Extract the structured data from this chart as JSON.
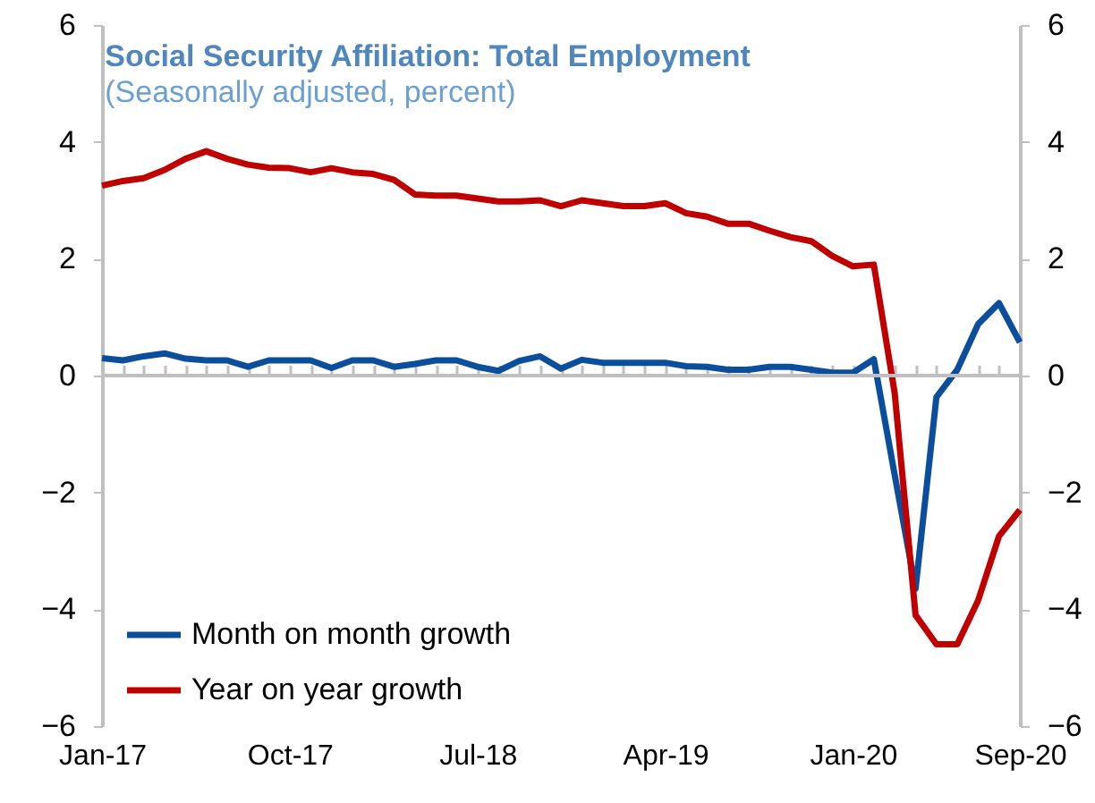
{
  "chart_data": {
    "type": "line",
    "title": "Social Security Affiliation: Total Employment",
    "subtitle": "(Seasonally adjusted, percent)",
    "categories": [
      "Jan-17",
      null,
      null,
      null,
      null,
      null,
      null,
      null,
      null,
      "Oct-17",
      null,
      null,
      null,
      null,
      null,
      null,
      null,
      null,
      "Jul-18",
      null,
      null,
      null,
      null,
      null,
      null,
      null,
      null,
      "Apr-19",
      null,
      null,
      null,
      null,
      null,
      null,
      null,
      null,
      "Jan-20",
      null,
      null,
      null,
      null,
      null,
      null,
      null,
      "Sep-20"
    ],
    "series": [
      {
        "name": "Month on month growth",
        "color": "#0b4f9c",
        "values": [
          0.3,
          0.26,
          0.33,
          0.38,
          0.29,
          0.26,
          0.26,
          0.15,
          0.26,
          0.26,
          0.26,
          0.13,
          0.26,
          0.26,
          0.15,
          0.2,
          0.26,
          0.26,
          0.15,
          0.08,
          0.25,
          0.33,
          0.12,
          0.27,
          0.22,
          0.22,
          0.22,
          0.22,
          0.16,
          0.15,
          0.1,
          0.1,
          0.15,
          0.15,
          0.1,
          0.05,
          0.05,
          0.28,
          -1.7,
          -3.65,
          -0.37,
          0.1,
          0.88,
          1.24,
          0.57
        ]
      },
      {
        "name": "Year on year growth",
        "color": "#c00000",
        "values": [
          3.25,
          3.33,
          3.38,
          3.52,
          3.71,
          3.84,
          3.71,
          3.61,
          3.56,
          3.55,
          3.48,
          3.55,
          3.48,
          3.45,
          3.35,
          3.1,
          3.08,
          3.08,
          3.03,
          2.98,
          2.98,
          3.0,
          2.9,
          3.0,
          2.95,
          2.9,
          2.9,
          2.95,
          2.78,
          2.72,
          2.6,
          2.6,
          2.48,
          2.37,
          2.3,
          2.05,
          1.87,
          1.9,
          -0.3,
          -4.1,
          -4.6,
          -4.6,
          -3.85,
          -2.75,
          -2.3
        ]
      }
    ],
    "ylim": [
      -6,
      6
    ],
    "yticks": [
      -6,
      -4,
      -2,
      0,
      2,
      4,
      6
    ],
    "y2lim": [
      -6,
      6
    ],
    "y2ticks": [
      -6,
      -4,
      -2,
      0,
      2,
      4,
      6
    ],
    "ref_lines": [
      {
        "axis": "y",
        "value": 0,
        "color": "#bfbfbf"
      }
    ],
    "grid": false,
    "legend": "bottom left",
    "line_style": "solid",
    "marker": "none"
  }
}
